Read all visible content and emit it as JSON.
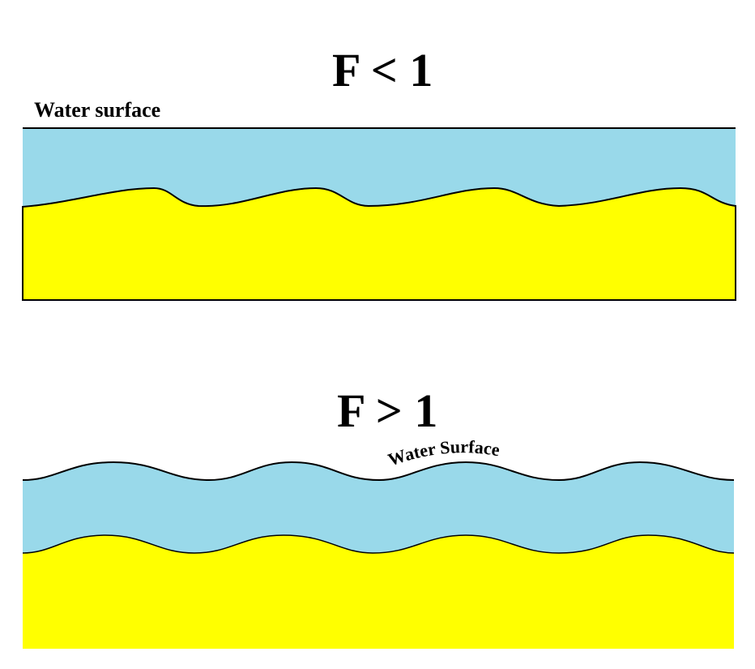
{
  "diagram": {
    "colors": {
      "water": "#99d9ea",
      "sediment": "#ffff00",
      "outline": "#000000",
      "background": "#ffffff"
    },
    "subcritical": {
      "title": "F < 1",
      "surface_label": "Water surface"
    },
    "supercritical": {
      "title": "F > 1",
      "surface_label": "Water Surface"
    }
  }
}
